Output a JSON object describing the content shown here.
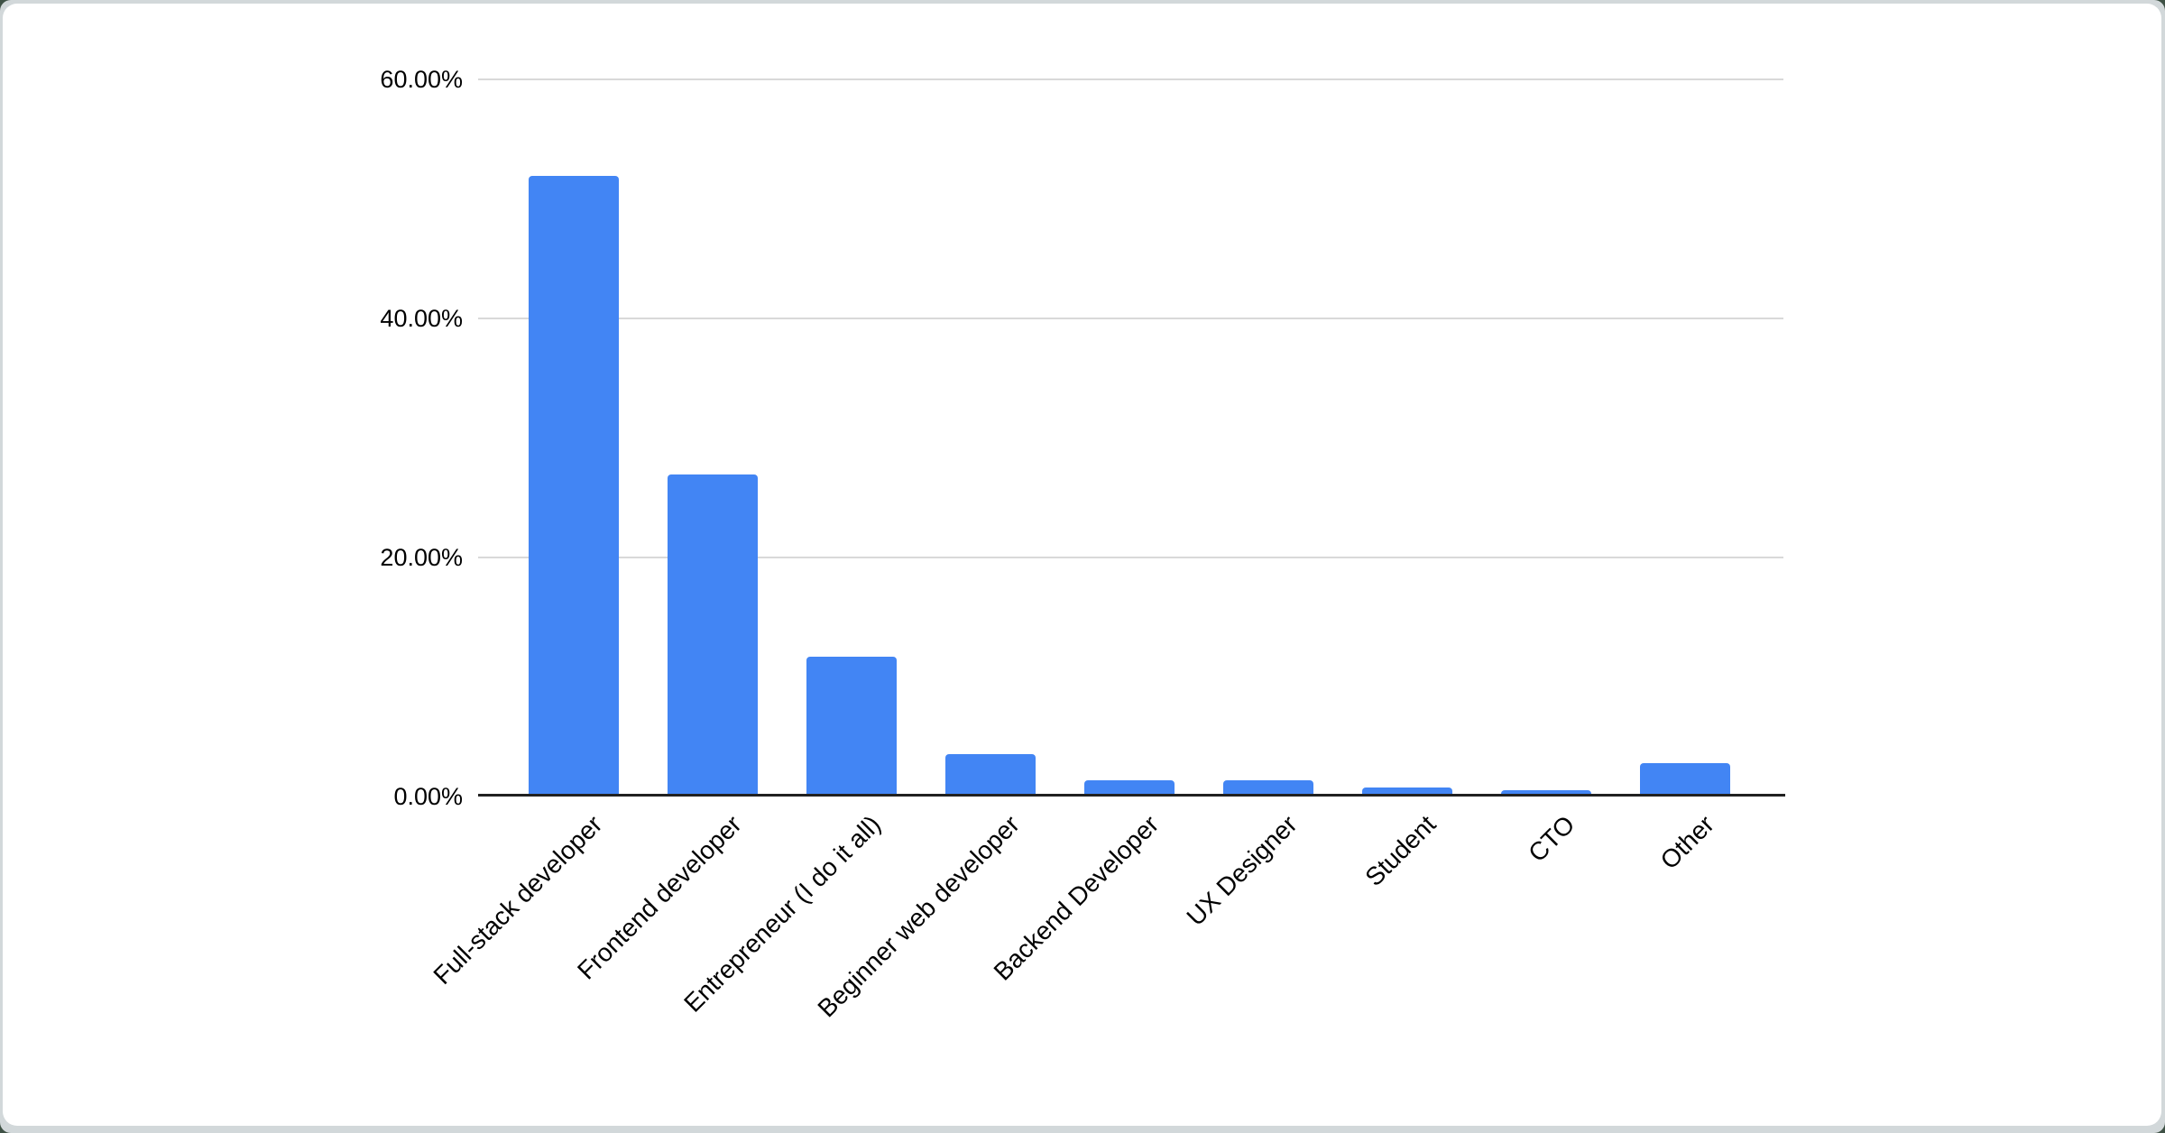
{
  "page": {
    "background_color": "#3e5145",
    "frame_color": "#d2d8da",
    "card_color": "#ffffff"
  },
  "chart_data": {
    "type": "bar",
    "categories": [
      "Full-stack developer",
      "Frontend developer",
      "Entrepreneur (I do it all)",
      "Beginner web developer",
      "Backend Developer",
      "UX Designer",
      "Student",
      "CTO",
      "Other"
    ],
    "values": [
      51.9,
      26.8,
      11.5,
      3.3,
      1.1,
      1.1,
      0.5,
      0.3,
      2.6
    ],
    "value_unit": "%",
    "ylim": [
      0,
      60
    ],
    "ytick_labels": [
      "60.00%",
      "40.00%",
      "20.00%",
      "0.00%"
    ],
    "ytick_values": [
      60,
      40,
      20,
      0
    ],
    "grid": true,
    "legend": false,
    "bar_color": "#4285f4",
    "gridline_color": "#d9d9d9",
    "axis_color": "#212121",
    "label_color": "#000000"
  }
}
